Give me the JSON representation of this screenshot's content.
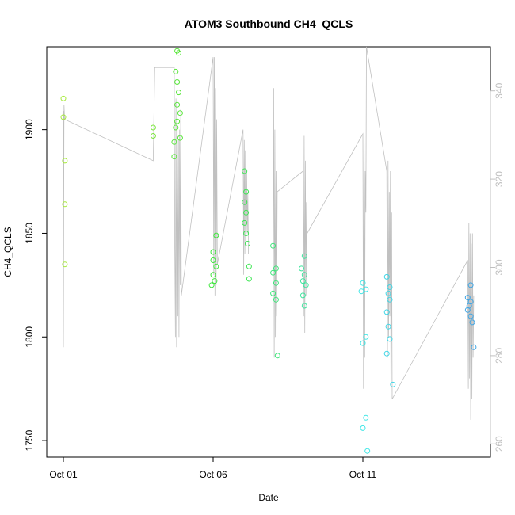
{
  "chart_data": {
    "type": "scatter",
    "title": "ATOM3 Southbound CH4_QCLS",
    "xlabel": "Date",
    "ylabel": "CH4_QCLS",
    "x_range_days": [
      0,
      15
    ],
    "x_ticks": [
      {
        "day": 0,
        "label": "Oct 01"
      },
      {
        "day": 5,
        "label": "Oct 06"
      },
      {
        "day": 10,
        "label": "Oct 11"
      }
    ],
    "ylim": [
      1742,
      1940
    ],
    "y_ticks": [
      1750,
      1800,
      1850,
      1900
    ],
    "y_right_lim": [
      257,
      350
    ],
    "y_right_ticks": [
      260,
      280,
      300,
      320,
      340
    ],
    "grid": false,
    "legend": "none",
    "colors": {
      "line": "#c0c0c0",
      "axis": "#000000",
      "right_axis": "#c0c0c0"
    },
    "points": [
      {
        "x": 0.0,
        "y": 1915,
        "color": "#a6ea3c"
      },
      {
        "x": 0.0,
        "y": 1906,
        "color": "#a6ea3c"
      },
      {
        "x": 0.05,
        "y": 1885,
        "color": "#a6ea3c"
      },
      {
        "x": 0.05,
        "y": 1864,
        "color": "#a6ea3c"
      },
      {
        "x": 0.05,
        "y": 1835,
        "color": "#a6ea3c"
      },
      {
        "x": 3.0,
        "y": 1901,
        "color": "#7ae63c"
      },
      {
        "x": 3.0,
        "y": 1897,
        "color": "#7ae63c"
      },
      {
        "x": 3.8,
        "y": 1938,
        "color": "#5ae63c"
      },
      {
        "x": 3.85,
        "y": 1937,
        "color": "#5ae63c"
      },
      {
        "x": 3.75,
        "y": 1928,
        "color": "#5ae63c"
      },
      {
        "x": 3.8,
        "y": 1923,
        "color": "#5ae63c"
      },
      {
        "x": 3.85,
        "y": 1918,
        "color": "#5ae63c"
      },
      {
        "x": 3.8,
        "y": 1912,
        "color": "#5ae63c"
      },
      {
        "x": 3.9,
        "y": 1908,
        "color": "#5ae63c"
      },
      {
        "x": 3.8,
        "y": 1904,
        "color": "#5ae63c"
      },
      {
        "x": 3.75,
        "y": 1901,
        "color": "#5ae63c"
      },
      {
        "x": 3.9,
        "y": 1896,
        "color": "#5ae63c"
      },
      {
        "x": 3.7,
        "y": 1894,
        "color": "#5ae63c"
      },
      {
        "x": 3.7,
        "y": 1887,
        "color": "#5ae63c"
      },
      {
        "x": 5.1,
        "y": 1849,
        "color": "#3ee63c"
      },
      {
        "x": 5.0,
        "y": 1841,
        "color": "#3ee63c"
      },
      {
        "x": 5.0,
        "y": 1837,
        "color": "#3ee63c"
      },
      {
        "x": 5.1,
        "y": 1834,
        "color": "#3ee63c"
      },
      {
        "x": 5.0,
        "y": 1830,
        "color": "#3ee63c"
      },
      {
        "x": 5.05,
        "y": 1827,
        "color": "#3ee63c"
      },
      {
        "x": 4.95,
        "y": 1825,
        "color": "#3ee63c"
      },
      {
        "x": 6.05,
        "y": 1880,
        "color": "#3ee654"
      },
      {
        "x": 6.1,
        "y": 1870,
        "color": "#3ee654"
      },
      {
        "x": 6.05,
        "y": 1865,
        "color": "#3ee654"
      },
      {
        "x": 6.1,
        "y": 1860,
        "color": "#3ee654"
      },
      {
        "x": 6.05,
        "y": 1855,
        "color": "#3ee654"
      },
      {
        "x": 6.1,
        "y": 1850,
        "color": "#3ee654"
      },
      {
        "x": 6.15,
        "y": 1845,
        "color": "#3ee654"
      },
      {
        "x": 6.2,
        "y": 1834,
        "color": "#3ee654"
      },
      {
        "x": 6.2,
        "y": 1828,
        "color": "#3ee654"
      },
      {
        "x": 7.0,
        "y": 1844,
        "color": "#3ee67a"
      },
      {
        "x": 7.1,
        "y": 1833,
        "color": "#3ee67a"
      },
      {
        "x": 7.0,
        "y": 1831,
        "color": "#3ee67a"
      },
      {
        "x": 7.1,
        "y": 1826,
        "color": "#3ee67a"
      },
      {
        "x": 7.0,
        "y": 1821,
        "color": "#3ee67a"
      },
      {
        "x": 7.1,
        "y": 1818,
        "color": "#3ee67a"
      },
      {
        "x": 7.15,
        "y": 1791,
        "color": "#3ee67a"
      },
      {
        "x": 8.05,
        "y": 1839,
        "color": "#3ee69e"
      },
      {
        "x": 7.95,
        "y": 1833,
        "color": "#3ee69e"
      },
      {
        "x": 8.05,
        "y": 1830,
        "color": "#3ee69e"
      },
      {
        "x": 8.0,
        "y": 1827,
        "color": "#3ee69e"
      },
      {
        "x": 8.1,
        "y": 1825,
        "color": "#3ee69e"
      },
      {
        "x": 8.0,
        "y": 1820,
        "color": "#3ee69e"
      },
      {
        "x": 8.05,
        "y": 1815,
        "color": "#3ee69e"
      },
      {
        "x": 10.0,
        "y": 1826,
        "color": "#3ee6e6"
      },
      {
        "x": 10.1,
        "y": 1823,
        "color": "#3ee6e6"
      },
      {
        "x": 9.95,
        "y": 1822,
        "color": "#3ee6e6"
      },
      {
        "x": 10.1,
        "y": 1800,
        "color": "#3ee6e6"
      },
      {
        "x": 10.0,
        "y": 1797,
        "color": "#3ee6e6"
      },
      {
        "x": 10.1,
        "y": 1761,
        "color": "#3ee6e6"
      },
      {
        "x": 10.0,
        "y": 1756,
        "color": "#3ee6e6"
      },
      {
        "x": 10.15,
        "y": 1745,
        "color": "#3ee6e6"
      },
      {
        "x": 10.8,
        "y": 1829,
        "color": "#3ed6e6"
      },
      {
        "x": 10.9,
        "y": 1824,
        "color": "#3ed6e6"
      },
      {
        "x": 10.85,
        "y": 1821,
        "color": "#3ed6e6"
      },
      {
        "x": 10.9,
        "y": 1818,
        "color": "#3ed6e6"
      },
      {
        "x": 10.8,
        "y": 1812,
        "color": "#3ed6e6"
      },
      {
        "x": 10.85,
        "y": 1805,
        "color": "#3ed6e6"
      },
      {
        "x": 10.9,
        "y": 1799,
        "color": "#3ed6e6"
      },
      {
        "x": 10.8,
        "y": 1792,
        "color": "#3ed6e6"
      },
      {
        "x": 11.0,
        "y": 1777,
        "color": "#3ed6e6"
      },
      {
        "x": 13.6,
        "y": 1825,
        "color": "#3ea6e6"
      },
      {
        "x": 13.5,
        "y": 1819,
        "color": "#3ea6e6"
      },
      {
        "x": 13.6,
        "y": 1817,
        "color": "#3ea6e6"
      },
      {
        "x": 13.55,
        "y": 1815,
        "color": "#3ea6e6"
      },
      {
        "x": 13.5,
        "y": 1813,
        "color": "#3ea6e6"
      },
      {
        "x": 13.6,
        "y": 1810,
        "color": "#3ea6e6"
      },
      {
        "x": 13.65,
        "y": 1807,
        "color": "#3ea6e6"
      },
      {
        "x": 13.7,
        "y": 1795,
        "color": "#3ea6e6"
      }
    ],
    "line_polyline": [
      [
        0.0,
        1909
      ],
      [
        0.0,
        1795
      ],
      [
        0.02,
        1912
      ],
      [
        0.04,
        1905
      ],
      [
        3.0,
        1885
      ],
      [
        3.05,
        1930
      ],
      [
        3.7,
        1930
      ],
      [
        3.72,
        1843
      ],
      [
        3.74,
        1800
      ],
      [
        3.76,
        1915
      ],
      [
        3.78,
        1795
      ],
      [
        3.8,
        1905
      ],
      [
        3.82,
        1810
      ],
      [
        3.84,
        1895
      ],
      [
        3.86,
        1800
      ],
      [
        3.88,
        1900
      ],
      [
        3.9,
        1825
      ],
      [
        3.92,
        1910
      ],
      [
        3.94,
        1820
      ],
      [
        5.0,
        1935
      ],
      [
        5.02,
        1830
      ],
      [
        5.04,
        1935
      ],
      [
        5.06,
        1820
      ],
      [
        5.08,
        1920
      ],
      [
        5.1,
        1825
      ],
      [
        5.12,
        1905
      ],
      [
        5.14,
        1835
      ],
      [
        6.0,
        1900
      ],
      [
        6.02,
        1830
      ],
      [
        6.04,
        1895
      ],
      [
        6.06,
        1840
      ],
      [
        6.08,
        1890
      ],
      [
        6.1,
        1845
      ],
      [
        6.12,
        1880
      ],
      [
        6.14,
        1850
      ],
      [
        6.16,
        1870
      ],
      [
        6.18,
        1840
      ],
      [
        7.0,
        1840
      ],
      [
        7.02,
        1920
      ],
      [
        7.04,
        1790
      ],
      [
        7.06,
        1900
      ],
      [
        7.08,
        1800
      ],
      [
        7.1,
        1880
      ],
      [
        7.12,
        1810
      ],
      [
        7.14,
        1870
      ],
      [
        8.0,
        1880
      ],
      [
        8.02,
        1810
      ],
      [
        8.04,
        1897
      ],
      [
        8.06,
        1802
      ],
      [
        8.08,
        1885
      ],
      [
        8.1,
        1820
      ],
      [
        8.12,
        1865
      ],
      [
        8.14,
        1850
      ],
      [
        10.0,
        1898
      ],
      [
        10.02,
        1775
      ],
      [
        10.04,
        1915
      ],
      [
        10.06,
        1790
      ],
      [
        10.08,
        1880
      ],
      [
        10.1,
        1860
      ],
      [
        10.12,
        1940
      ],
      [
        10.8,
        1880
      ],
      [
        10.82,
        1790
      ],
      [
        10.84,
        1885
      ],
      [
        10.86,
        1800
      ],
      [
        10.88,
        1870
      ],
      [
        10.9,
        1810
      ],
      [
        10.92,
        1880
      ],
      [
        10.94,
        1760
      ],
      [
        10.96,
        1860
      ],
      [
        10.98,
        1770
      ],
      [
        13.5,
        1837
      ],
      [
        13.52,
        1775
      ],
      [
        13.54,
        1855
      ],
      [
        13.56,
        1780
      ],
      [
        13.58,
        1850
      ],
      [
        13.6,
        1760
      ],
      [
        13.62,
        1845
      ],
      [
        13.64,
        1770
      ],
      [
        13.66,
        1850
      ],
      [
        13.68,
        1790
      ],
      [
        13.7,
        1820
      ]
    ]
  }
}
